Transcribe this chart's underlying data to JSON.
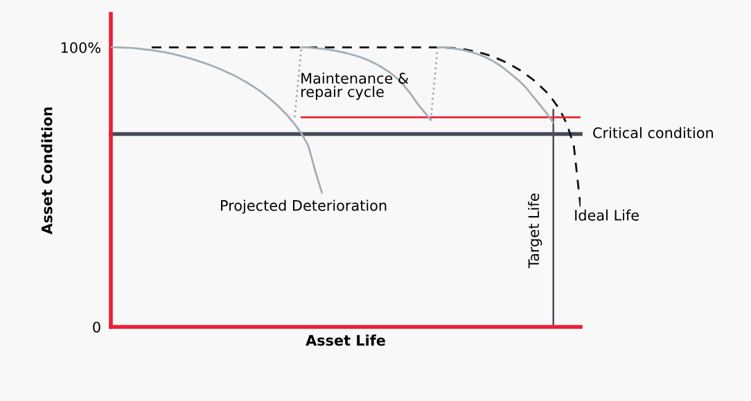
{
  "chart_data": {
    "type": "line",
    "xlabel": "Asset Life",
    "ylabel": "Asset Condition",
    "categories": [
      null,
      null,
      null,
      null,
      null,
      null,
      null,
      null,
      null,
      null,
      null,
      null,
      null,
      null,
      null,
      null,
      null,
      null,
      null,
      null,
      null,
      null,
      null,
      null,
      null,
      null,
      null,
      null,
      null,
      null,
      null,
      null,
      null,
      null,
      null,
      null,
      null,
      null,
      null,
      null,
      null,
      null,
      null,
      null,
      null,
      null,
      null,
      null,
      null,
      null,
      null,
      null,
      null,
      null,
      null,
      null,
      null,
      null,
      null,
      null,
      null,
      null,
      null,
      null,
      null,
      null,
      null,
      null,
      null,
      null
    ],
    "ylim": [
      0,
      112
    ],
    "yticks": [
      0,
      {
        "value": 100,
        "label": "100%"
      }
    ],
    "tick_labels": "y",
    "series": [
      {
        "color": "#a2aeb6",
        "line_style": "solid",
        "values": [
          100,
          100,
          99.9,
          99.8,
          99.6,
          99.3,
          99.0,
          98.6,
          98.2,
          97.7,
          97.1,
          96.5,
          95.8,
          95.0,
          94.2,
          93.3,
          92.3,
          91.2,
          90.1,
          88.8,
          87.4,
          85.9,
          84.2,
          82.3,
          80.3,
          78.0,
          75.5,
          72.5,
          69.2,
          64.9,
          56,
          48,
          null,
          null,
          null,
          null,
          null,
          null,
          null,
          null,
          null,
          null,
          null,
          null,
          null,
          null,
          null,
          null,
          null,
          null,
          null,
          null,
          null,
          null,
          null,
          null,
          null,
          null,
          null,
          null,
          null,
          null,
          null,
          null,
          null,
          null,
          null,
          null,
          null,
          null
        ]
      },
      {
        "color": "#111111",
        "line_style": "dashed",
        "values": [
          null,
          null,
          null,
          null,
          null,
          null,
          100,
          100,
          100,
          100,
          100,
          100,
          100,
          100,
          100,
          100,
          100,
          100,
          100,
          100,
          100,
          100,
          100,
          100,
          100,
          100,
          100,
          100,
          100,
          100,
          100,
          100,
          100,
          100,
          100,
          100,
          100,
          100,
          100,
          100,
          100,
          100,
          100,
          100,
          100,
          100,
          100,
          100,
          100,
          99.9,
          99.8,
          99.6,
          99.3,
          98.8,
          98.3,
          97.6,
          96.8,
          95.8,
          94.7,
          93.4,
          92,
          90.3,
          88.5,
          86.3,
          84,
          81,
          77.5,
          72.5,
          65,
          43
        ]
      },
      {
        "color": "#ee2233",
        "line_style": "solid",
        "values": [
          null,
          null,
          null,
          null,
          null,
          null,
          null,
          null,
          null,
          null,
          null,
          null,
          null,
          null,
          null,
          null,
          null,
          null,
          null,
          null,
          null,
          null,
          null,
          null,
          null,
          null,
          null,
          null,
          75,
          75,
          75,
          75,
          75,
          75,
          75,
          75,
          75,
          75,
          75,
          75,
          75,
          75,
          75,
          75,
          75,
          75,
          75,
          75,
          75,
          75,
          75,
          75,
          75,
          75,
          75,
          75,
          75,
          75,
          75,
          75,
          75,
          75,
          75,
          75,
          75,
          75,
          75,
          75,
          75,
          75
        ]
      },
      {
        "color": "#a2aeb6",
        "line_style": "dotted",
        "values": [
          null,
          null,
          null,
          null,
          null,
          null,
          null,
          null,
          null,
          null,
          null,
          null,
          null,
          null,
          null,
          null,
          null,
          null,
          null,
          null,
          null,
          null,
          null,
          null,
          null,
          null,
          null,
          75,
          100,
          null,
          null,
          null,
          null,
          null,
          null,
          null,
          null,
          null,
          null,
          null,
          null,
          null,
          null,
          null,
          null,
          null,
          null,
          null,
          null,
          null,
          null,
          null,
          null,
          null,
          null,
          null,
          null,
          null,
          null,
          null,
          null,
          null,
          null,
          null,
          null,
          null,
          null,
          null,
          null,
          null
        ]
      },
      {
        "color": "#a2aeb6",
        "line_style": "solid",
        "values": [
          null,
          null,
          null,
          null,
          null,
          null,
          null,
          null,
          null,
          null,
          null,
          null,
          null,
          null,
          null,
          null,
          null,
          null,
          null,
          null,
          null,
          null,
          null,
          null,
          null,
          null,
          null,
          null,
          100,
          100,
          99.7,
          99.5,
          99.2,
          98.8,
          98.3,
          97.7,
          97,
          96.2,
          95.2,
          94,
          92.6,
          91,
          89,
          86.5,
          83.5,
          80,
          77,
          74,
          null,
          null,
          null,
          null,
          null,
          null,
          null,
          null,
          null,
          null,
          null,
          null,
          null,
          null,
          null,
          null,
          null,
          null,
          null,
          null,
          null,
          null
        ]
      },
      {
        "color": "#a2aeb6",
        "line_style": "dotted",
        "values": [
          null,
          null,
          null,
          null,
          null,
          null,
          null,
          null,
          null,
          null,
          null,
          null,
          null,
          null,
          null,
          null,
          null,
          null,
          null,
          null,
          null,
          null,
          null,
          null,
          null,
          null,
          null,
          null,
          null,
          null,
          null,
          null,
          null,
          null,
          null,
          null,
          null,
          null,
          null,
          null,
          null,
          null,
          null,
          null,
          null,
          null,
          null,
          74,
          100,
          null,
          null,
          null,
          null,
          null,
          null,
          null,
          null,
          null,
          null,
          null,
          null,
          null,
          null,
          null,
          null,
          null,
          null,
          null,
          null,
          null
        ]
      },
      {
        "color": "#a2aeb6",
        "line_style": "solid",
        "values": [
          null,
          null,
          null,
          null,
          null,
          null,
          null,
          null,
          null,
          null,
          null,
          null,
          null,
          null,
          null,
          null,
          null,
          null,
          null,
          null,
          null,
          null,
          null,
          null,
          null,
          null,
          null,
          null,
          null,
          null,
          null,
          null,
          null,
          null,
          null,
          null,
          null,
          null,
          null,
          null,
          null,
          null,
          null,
          null,
          null,
          null,
          null,
          null,
          100,
          100,
          99.7,
          99.4,
          98.9,
          98.3,
          97.5,
          96.5,
          95.3,
          93.8,
          92,
          90,
          88,
          85.5,
          82.5,
          79.5,
          76.5,
          73,
          null,
          null,
          null,
          null
        ]
      },
      {
        "type": "bar",
        "color": "#464b56",
        "values": [
          null,
          null,
          null,
          null,
          null,
          null,
          null,
          null,
          null,
          null,
          null,
          null,
          null,
          null,
          null,
          null,
          null,
          null,
          null,
          null,
          null,
          null,
          null,
          null,
          null,
          null,
          null,
          null,
          null,
          null,
          null,
          null,
          null,
          null,
          null,
          null,
          null,
          null,
          null,
          null,
          null,
          null,
          null,
          null,
          null,
          null,
          null,
          null,
          null,
          null,
          null,
          null,
          null,
          null,
          null,
          null,
          null,
          null,
          null,
          null,
          null,
          null,
          null,
          null,
          null,
          78,
          null,
          null,
          null,
          null
        ]
      }
    ],
    "ref_lines": [
      {
        "axis": "y",
        "value": 0,
        "label": null,
        "color": "#ee1c34",
        "line_style": "solid"
      },
      {
        "axis": "y",
        "value": 69,
        "label": "Critical condition",
        "color": "#464b56",
        "line_style": "solid"
      }
    ],
    "annotations": [
      "Maintenance &\nrepair cycle",
      "Projected Deterioration",
      "Target Life",
      "Ideal Life"
    ],
    "grid": false,
    "legend": false
  }
}
